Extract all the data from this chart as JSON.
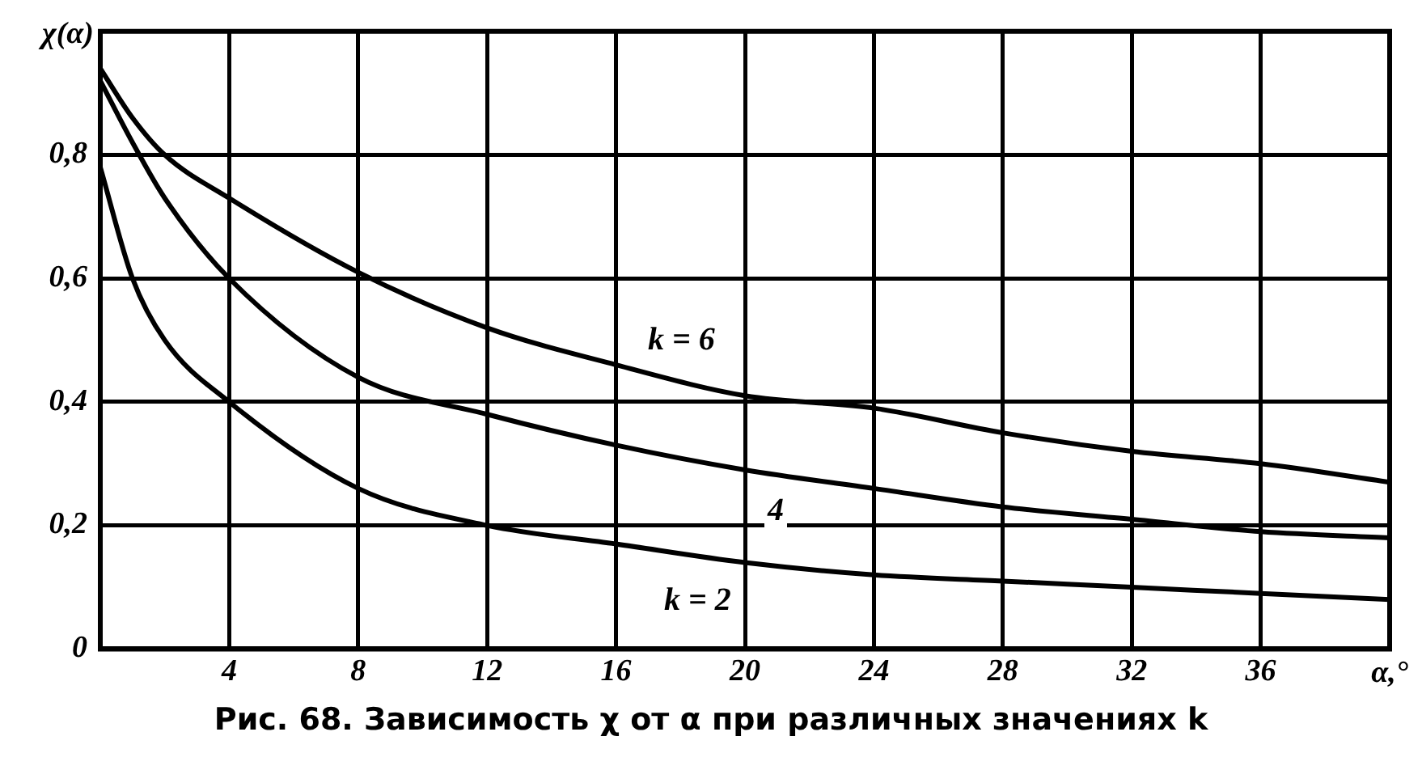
{
  "chart_data": {
    "type": "line",
    "xlabel": "α,°",
    "ylabel": "χ(α)",
    "x": [
      0,
      1,
      2,
      4,
      8,
      12,
      16,
      20,
      24,
      28,
      32,
      36,
      40
    ],
    "series": [
      {
        "name": "k = 6",
        "color": "#000000",
        "values": [
          0.94,
          0.86,
          0.8,
          0.73,
          0.61,
          0.52,
          0.46,
          0.41,
          0.39,
          0.35,
          0.32,
          0.3,
          0.27
        ]
      },
      {
        "name": "4",
        "color": "#000000",
        "values": [
          0.92,
          0.82,
          0.73,
          0.6,
          0.44,
          0.38,
          0.33,
          0.29,
          0.26,
          0.23,
          0.21,
          0.19,
          0.18
        ]
      },
      {
        "name": "k = 2",
        "color": "#000000",
        "values": [
          0.78,
          0.6,
          0.5,
          0.4,
          0.26,
          0.2,
          0.17,
          0.14,
          0.12,
          0.11,
          0.1,
          0.09,
          0.08
        ]
      }
    ],
    "xlim": [
      0,
      40
    ],
    "ylim": [
      0,
      1
    ],
    "xticks": [
      {
        "value": 0,
        "label": null
      },
      4,
      8,
      12,
      16,
      20,
      24,
      28,
      32,
      36
    ],
    "yticks": [
      {
        "value": 0,
        "label": "0"
      },
      {
        "value": 0.2,
        "label": "0,2"
      },
      {
        "value": 0.4,
        "label": "0,4"
      },
      {
        "value": 0.6,
        "label": "0,6"
      },
      {
        "value": 0.8,
        "label": "0,8"
      }
    ],
    "grid": true,
    "legend": false,
    "marker": "none",
    "line_style": "solid",
    "annotations": [
      "Рис. 68. Зависимость χ от α при различных значениях k"
    ]
  }
}
